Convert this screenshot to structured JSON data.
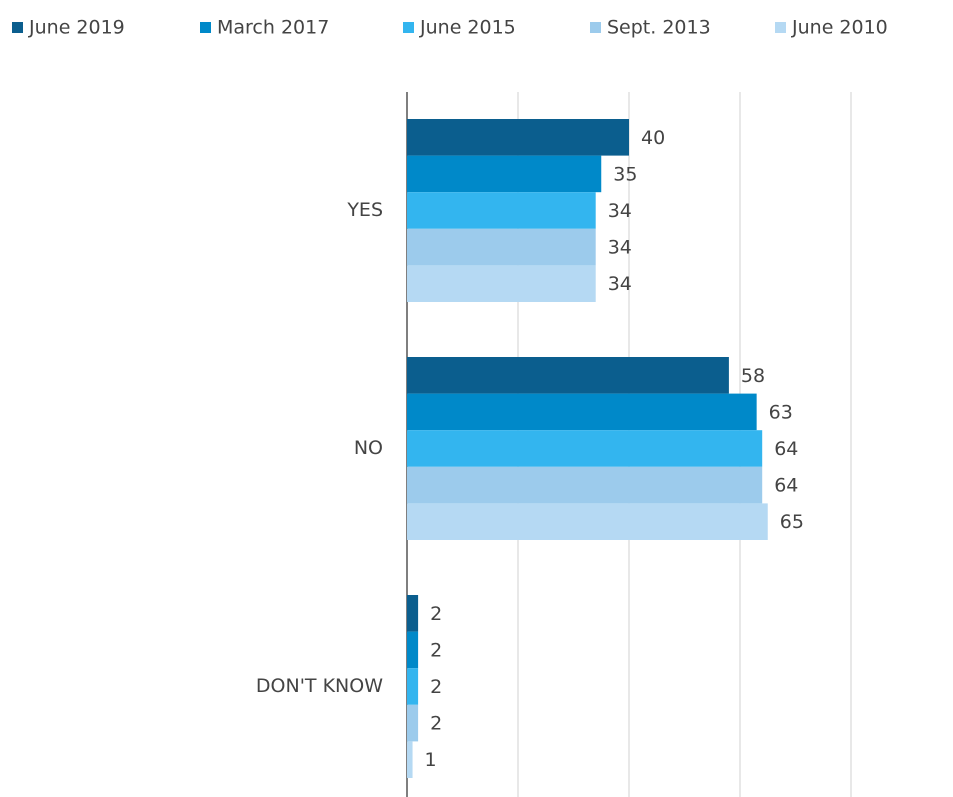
{
  "chart_data": {
    "type": "hbar",
    "categories": [
      "YES",
      "NO",
      "DON'T KNOW"
    ],
    "series": [
      {
        "name": "June 2019",
        "color": "#0b5e8e",
        "values": [
          40,
          58,
          2
        ]
      },
      {
        "name": "March 2017",
        "color": "#0089c9",
        "values": [
          35,
          63,
          2
        ]
      },
      {
        "name": "June 2015",
        "color": "#33b5ef",
        "values": [
          34,
          64,
          2
        ]
      },
      {
        "name": "Sept. 2013",
        "color": "#9ccbec",
        "values": [
          34,
          64,
          2
        ]
      },
      {
        "name": "June 2010",
        "color": "#b5d9f3",
        "values": [
          34,
          65,
          1
        ]
      }
    ],
    "xlim": [
      0,
      80
    ],
    "xticks": [
      0,
      20,
      40,
      60,
      80
    ],
    "grid": true,
    "legend": "top"
  }
}
